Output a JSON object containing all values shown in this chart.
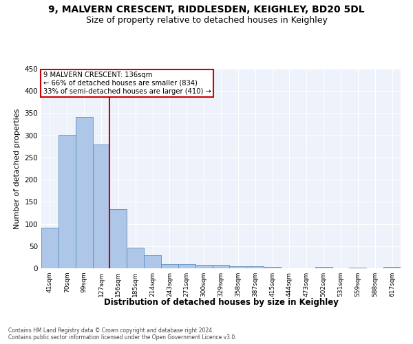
{
  "title1": "9, MALVERN CRESCENT, RIDDLESDEN, KEIGHLEY, BD20 5DL",
  "title2": "Size of property relative to detached houses in Keighley",
  "xlabel": "Distribution of detached houses by size in Keighley",
  "ylabel": "Number of detached properties",
  "footer1": "Contains HM Land Registry data © Crown copyright and database right 2024.",
  "footer2": "Contains public sector information licensed under the Open Government Licence v3.0.",
  "categories": [
    "41sqm",
    "70sqm",
    "99sqm",
    "127sqm",
    "156sqm",
    "185sqm",
    "214sqm",
    "243sqm",
    "271sqm",
    "300sqm",
    "329sqm",
    "358sqm",
    "387sqm",
    "415sqm",
    "444sqm",
    "473sqm",
    "502sqm",
    "531sqm",
    "559sqm",
    "588sqm",
    "617sqm"
  ],
  "values": [
    92,
    301,
    341,
    279,
    133,
    47,
    30,
    9,
    10,
    8,
    8,
    4,
    4,
    3,
    0,
    0,
    3,
    0,
    2,
    0,
    3
  ],
  "bar_color": "#aec6e8",
  "bar_edge_color": "#5a8fc0",
  "property_line_x": 3.5,
  "annotation_text1": "9 MALVERN CRESCENT: 136sqm",
  "annotation_text2": "← 66% of detached houses are smaller (834)",
  "annotation_text3": "33% of semi-detached houses are larger (410) →",
  "annotation_box_color": "#ffffff",
  "annotation_box_edge_color": "#cc0000",
  "vline_color": "#cc0000",
  "ylim": [
    0,
    450
  ],
  "yticks": [
    0,
    50,
    100,
    150,
    200,
    250,
    300,
    350,
    400,
    450
  ],
  "bg_color": "#eef2fb",
  "grid_color": "#ffffff",
  "title1_fontsize": 10,
  "title2_fontsize": 9,
  "xlabel_fontsize": 8.5,
  "ylabel_fontsize": 8,
  "footer_fontsize": 5.5,
  "annot_fontsize": 7.2,
  "tick_fontsize": 6.5,
  "ytick_fontsize": 7.5
}
